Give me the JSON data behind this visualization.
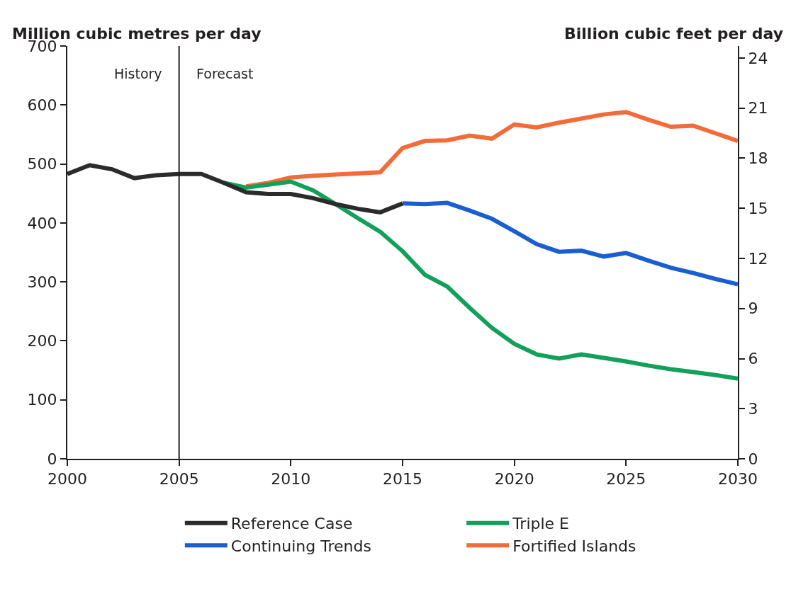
{
  "chart_data": {
    "type": "line",
    "ylabel": "Million cubic metres per day",
    "y2label": "Billion cubic feet per day",
    "xlim": [
      2000,
      2030
    ],
    "xticks": [
      2000,
      2005,
      2010,
      2015,
      2020,
      2025,
      2030
    ],
    "ylim": [
      0,
      700
    ],
    "yticks": [
      0,
      100,
      200,
      300,
      400,
      500,
      600,
      700
    ],
    "y2lim": [
      0,
      24.72
    ],
    "y2ticks": [
      0,
      3,
      6,
      9,
      12,
      15,
      18,
      21,
      24
    ],
    "legend": "bottom",
    "line_style": "solid",
    "marker": "none",
    "ref_lines": [
      {
        "axis": "x",
        "value": 2005,
        "color": "#231f20"
      }
    ],
    "annotations": [
      "History",
      "Forecast"
    ],
    "series": [
      {
        "name": "Fortified Islands",
        "color": "#f26b38",
        "x": [
          2008,
          2009,
          2010,
          2011,
          2012,
          2013,
          2014,
          2015,
          2016,
          2017,
          2018,
          2019,
          2020,
          2021,
          2022,
          2023,
          2024,
          2025,
          2026,
          2027,
          2028,
          2029,
          2030
        ],
        "values": [
          462,
          468,
          477,
          480,
          482,
          484,
          486,
          527,
          539,
          540,
          548,
          543,
          567,
          562,
          570,
          577,
          584,
          588,
          575,
          563,
          565,
          552,
          539
        ]
      },
      {
        "name": "Triple E",
        "color": "#12a05a",
        "x": [
          2007,
          2008,
          2009,
          2010,
          2011,
          2012,
          2013,
          2014,
          2015,
          2016,
          2017,
          2018,
          2019,
          2020,
          2021,
          2022,
          2023,
          2024,
          2025,
          2026,
          2027,
          2028,
          2029,
          2030
        ],
        "values": [
          468,
          460,
          465,
          470,
          455,
          432,
          408,
          385,
          352,
          312,
          292,
          256,
          222,
          195,
          177,
          170,
          177,
          171,
          165,
          158,
          152,
          147,
          142,
          136
        ]
      },
      {
        "name": "Continuing Trends",
        "color": "#1a5fd0",
        "x": [
          2015,
          2016,
          2017,
          2018,
          2019,
          2020,
          2021,
          2022,
          2023,
          2024,
          2025,
          2026,
          2027,
          2028,
          2029,
          2030
        ],
        "values": [
          433,
          432,
          434,
          421,
          407,
          386,
          364,
          351,
          353,
          343,
          349,
          336,
          324,
          315,
          305,
          296
        ]
      },
      {
        "name": "Reference Case",
        "color": "#2b2b2b",
        "x": [
          2000,
          2001,
          2002,
          2003,
          2004,
          2005,
          2006,
          2007,
          2008,
          2009,
          2010,
          2011,
          2012,
          2013,
          2014,
          2015
        ],
        "values": [
          483,
          498,
          491,
          476,
          481,
          483,
          483,
          468,
          452,
          449,
          449,
          442,
          432,
          424,
          418,
          433
        ]
      }
    ]
  }
}
